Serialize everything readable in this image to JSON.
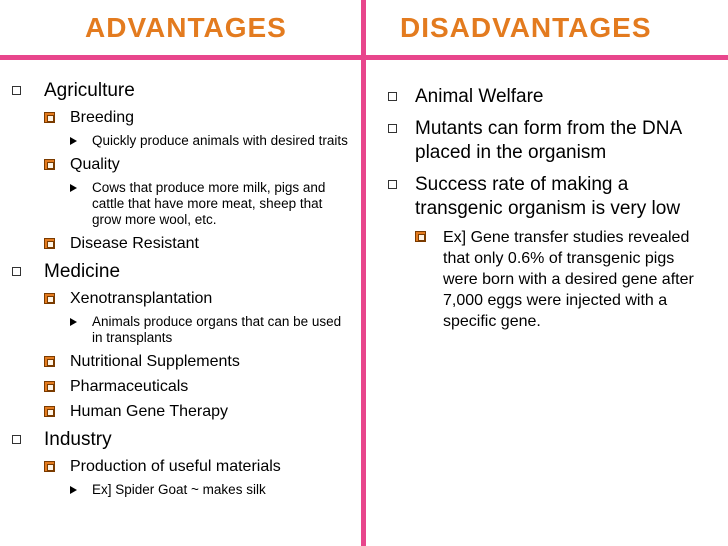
{
  "header": {
    "advantages": "ADVANTAGES",
    "disadvantages": "DISADVANTAGES"
  },
  "advantages": {
    "agriculture": {
      "label": "Agriculture",
      "breeding": {
        "label": "Breeding",
        "detail": "Quickly produce animals with desired traits"
      },
      "quality": {
        "label": "Quality",
        "detail": "Cows that produce more milk, pigs and cattle that have more meat, sheep that grow more wool, etc."
      },
      "disease": {
        "label": "Disease Resistant"
      }
    },
    "medicine": {
      "label": "Medicine",
      "xeno": {
        "label": "Xenotransplantation",
        "detail": "Animals produce organs that can be used in transplants"
      },
      "nutrition": {
        "label": "Nutritional Supplements"
      },
      "pharma": {
        "label": "Pharmaceuticals"
      },
      "gene_therapy": {
        "label": "Human Gene Therapy"
      }
    },
    "industry": {
      "label": "Industry",
      "production": {
        "label": "Production of useful materials",
        "detail": "Ex] Spider Goat ~ makes silk"
      }
    }
  },
  "disadvantages": {
    "welfare": "Animal Welfare",
    "mutants": "Mutants can form from the DNA placed in the organism",
    "success": "Success rate of making a transgenic organism is very low",
    "example": "Ex] Gene transfer studies revealed that only 0.6% of transgenic pigs were born with a desired gene after 7,000 eggs were injected with a specific gene."
  },
  "colors": {
    "divider": "#e8468c",
    "heading": "#e37b1f"
  },
  "icons": {
    "level1": "hollow-square-bullet",
    "level2": "filled-square-bullet",
    "level3": "triangle-bullet"
  }
}
